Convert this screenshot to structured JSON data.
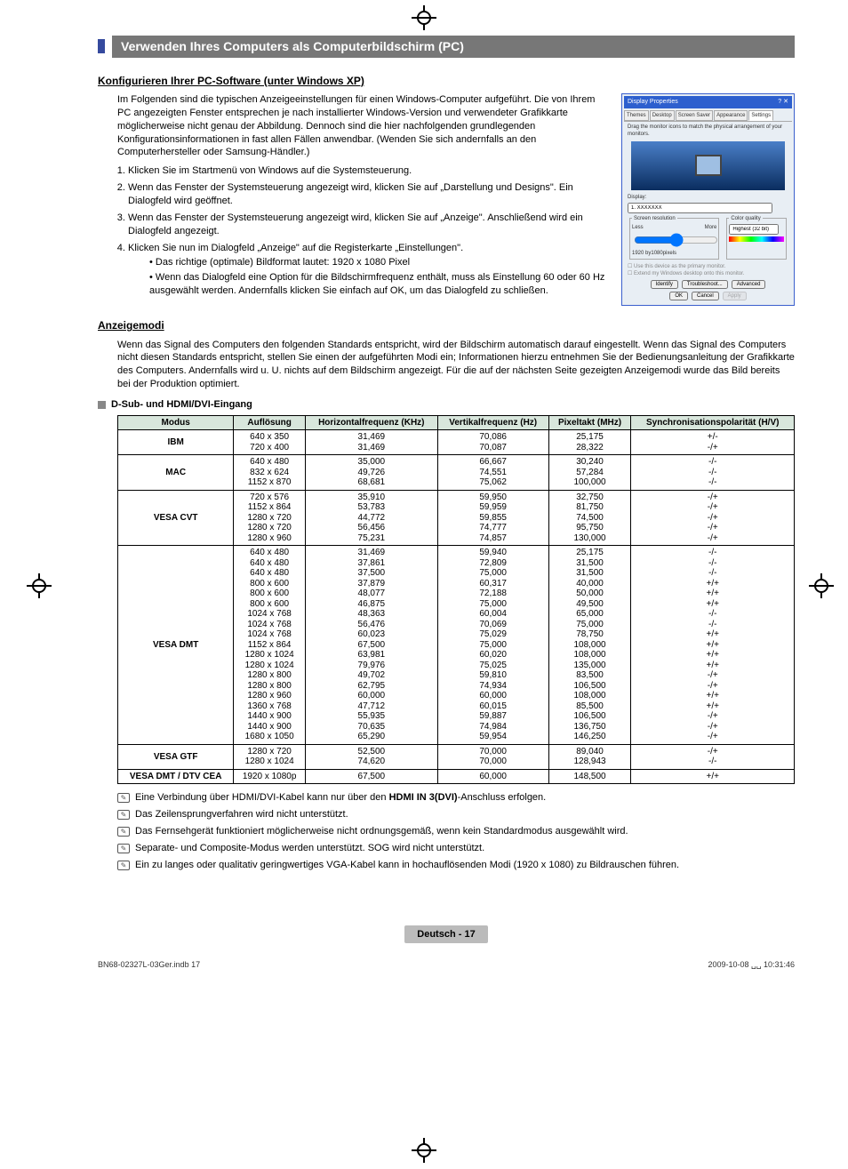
{
  "section_title": "Verwenden Ihres Computers als Computerbildschirm (PC)",
  "sub1": "Konfigurieren Ihrer PC-Software (unter Windows XP)",
  "intro": "Im Folgenden sind die typischen Anzeigeeinstellungen für einen Windows-Computer aufgeführt. Die von Ihrem PC angezeigten Fenster entsprechen je nach installierter Windows-Version und verwendeter Grafikkarte möglicherweise nicht genau der Abbildung. Dennoch sind die hier nachfolgenden grundlegenden Konfigurationsinformationen in fast allen Fällen anwendbar. (Wenden Sie sich andernfalls an den Computerhersteller oder Samsung-Händler.)",
  "steps": [
    "Klicken Sie im Startmenü von Windows auf die Systemsteuerung.",
    "Wenn das Fenster der Systemsteuerung angezeigt wird, klicken Sie auf „Darstellung und Designs\". Ein Dialogfeld wird geöffnet.",
    "Wenn das Fenster der Systemsteuerung angezeigt wird, klicken Sie auf „Anzeige\". Anschließend wird ein Dialogfeld angezeigt.",
    "Klicken Sie nun im Dialogfeld „Anzeige\" auf die Registerkarte „Einstellungen\"."
  ],
  "substeps": [
    "Das richtige (optimale) Bildformat lautet: 1920 x 1080 Pixel",
    "Wenn das Dialogfeld eine Option für die Bildschirmfrequenz enthält, muss als Einstellung 60 oder 60 Hz ausgewählt werden. Andernfalls klicken Sie einfach auf OK, um das Dialogfeld zu schließen."
  ],
  "dialog": {
    "title": "Display Properties",
    "tabs": [
      "Themes",
      "Desktop",
      "Screen Saver",
      "Appearance",
      "Settings"
    ],
    "drag": "Drag the monitor icons to match the physical arrangement of your monitors.",
    "display_label": "Display:",
    "display_value": "1. XXXXXXX",
    "res_legend": "Screen resolution",
    "res_less": "Less",
    "res_more": "More",
    "res_value": "1920 by1080pixels",
    "cq_legend": "Color quality",
    "cq_value": "Highest (32 bit)",
    "chk1": "Use this device as the primary monitor.",
    "chk2": "Extend my Windows desktop onto this monitor.",
    "btn_identify": "Identify",
    "btn_trouble": "Troubleshoot...",
    "btn_adv": "Advanced",
    "btn_ok": "OK",
    "btn_cancel": "Cancel",
    "btn_apply": "Apply"
  },
  "sub2": "Anzeigemodi",
  "anzeigemodi_text": "Wenn das Signal des Computers den folgenden Standards entspricht, wird der Bildschirm automatisch darauf eingestellt. Wenn das Signal des Computers nicht diesen Standards entspricht, stellen Sie einen der aufgeführten Modi ein; Informationen hierzu entnehmen Sie der Bedienungsanleitung der Grafikkarte des Computers. Andernfalls wird u. U. nichts auf dem Bildschirm angezeigt. Für die auf der nächsten Seite gezeigten Anzeigemodi wurde das Bild bereits bei der Produktion optimiert.",
  "table_caption": "D-Sub- und HDMI/DVI-Eingang",
  "table_headers": [
    "Modus",
    "Auflösung",
    "Horizontalfrequenz (KHz)",
    "Vertikalfrequenz (Hz)",
    "Pixeltakt (MHz)",
    "Synchronisationspolarität (H/V)"
  ],
  "rows": [
    {
      "m": "IBM",
      "a": "640 x 350\n720 x 400",
      "h": "31,469\n31,469",
      "v": "70,086\n70,087",
      "p": "25,175\n28,322",
      "s": "+/-\n-/+"
    },
    {
      "m": "MAC",
      "a": "640 x 480\n832 x 624\n1152 x 870",
      "h": "35,000\n49,726\n68,681",
      "v": "66,667\n74,551\n75,062",
      "p": "30,240\n57,284\n100,000",
      "s": "-/-\n-/-\n-/-"
    },
    {
      "m": "VESA CVT",
      "a": "720 x 576\n1152 x 864\n1280 x 720\n1280 x 720\n1280 x 960",
      "h": "35,910\n53,783\n44,772\n56,456\n75,231",
      "v": "59,950\n59,959\n59,855\n74,777\n74,857",
      "p": "32,750\n81,750\n74,500\n95,750\n130,000",
      "s": "-/+\n-/+\n-/+\n-/+\n-/+"
    },
    {
      "m": "VESA DMT",
      "a": "640 x 480\n640 x 480\n640 x 480\n800 x 600\n800 x 600\n800 x 600\n1024 x 768\n1024 x 768\n1024 x 768\n1152 x 864\n1280 x 1024\n1280 x 1024\n1280 x 800\n1280 x 800\n1280 x 960\n1360 x 768\n1440 x 900\n1440 x 900\n1680 x 1050",
      "h": "31,469\n37,861\n37,500\n37,879\n48,077\n46,875\n48,363\n56,476\n60,023\n67,500\n63,981\n79,976\n49,702\n62,795\n60,000\n47,712\n55,935\n70,635\n65,290",
      "v": "59,940\n72,809\n75,000\n60,317\n72,188\n75,000\n60,004\n70,069\n75,029\n75,000\n60,020\n75,025\n59,810\n74,934\n60,000\n60,015\n59,887\n74,984\n59,954",
      "p": "25,175\n31,500\n31,500\n40,000\n50,000\n49,500\n65,000\n75,000\n78,750\n108,000\n108,000\n135,000\n83,500\n106,500\n108,000\n85,500\n106,500\n136,750\n146,250",
      "s": "-/-\n-/-\n-/-\n+/+\n+/+\n+/+\n-/-\n-/-\n+/+\n+/+\n+/+\n+/+\n-/+\n-/+\n+/+\n+/+\n-/+\n-/+\n-/+"
    },
    {
      "m": "VESA GTF",
      "a": "1280 x 720\n1280 x 1024",
      "h": "52,500\n74,620",
      "v": "70,000\n70,000",
      "p": "89,040\n128,943",
      "s": "-/+\n-/-"
    },
    {
      "m": "VESA DMT / DTV CEA",
      "a": "1920 x 1080p",
      "h": "67,500",
      "v": "60,000",
      "p": "148,500",
      "s": "+/+"
    }
  ],
  "notes": [
    "Eine Verbindung über HDMI/DVI-Kabel kann nur über den <b>HDMI IN 3(DVI)</b>-Anschluss erfolgen.",
    "Das Zeilensprungverfahren wird nicht unterstützt.",
    "Das Fernsehgerät funktioniert möglicherweise nicht ordnungsgemäß, wenn kein Standardmodus ausgewählt wird.",
    "Separate- und Composite-Modus werden unterstützt. SOG wird nicht unterstützt.",
    "Ein zu langes oder qualitativ geringwertiges VGA-Kabel kann in hochauflösenden Modi (1920 x 1080) zu Bildrauschen führen."
  ],
  "footer_label": "Deutsch - 17",
  "bottom_left": "BN68-02327L-03Ger.indb   17",
  "bottom_right": "2009-10-08   ␣␣ 10:31:46"
}
